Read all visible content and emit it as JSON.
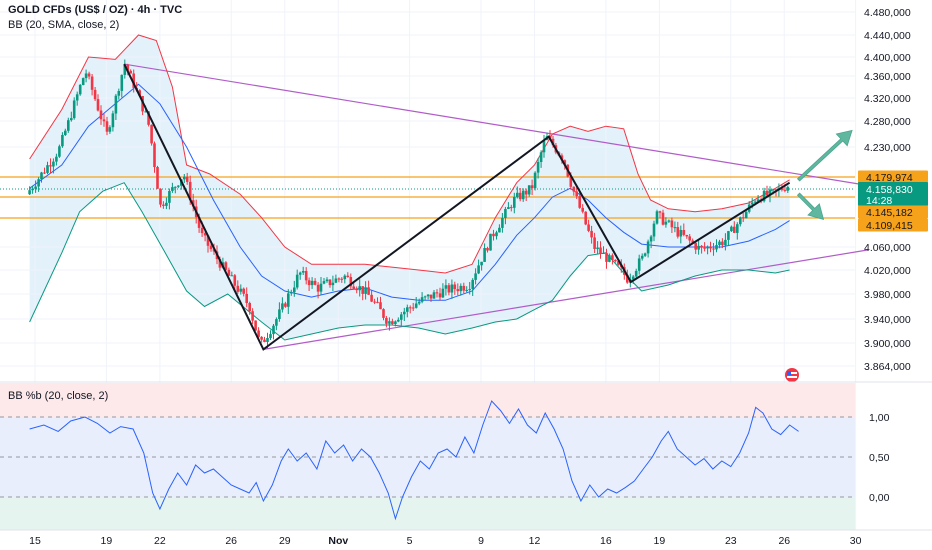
{
  "header": {
    "symbol_line": "GOLD CFDs (US$ / OZ) · 4h · TVC",
    "indicator_line": "BB (20, SMA, close, 2)",
    "oscillator_line": "BB %b (20, close, 2)"
  },
  "colors": {
    "up": "#089981",
    "down": "#f23645",
    "bb_upper": "#f23645",
    "bb_lower": "#089981",
    "bb_basis": "#2962ff",
    "bb_fill": "#d8ecf8",
    "trend": "#b15cc9",
    "level": "#f7a21b",
    "arrow": "#5fb7a0",
    "pb_line": "#2962ff",
    "last_price_bg": "#089981"
  },
  "price_tags": {
    "resistance": "4.179,974",
    "last": "4.158,830",
    "countdown": "14:28",
    "level_mid": "4.145,182",
    "level_low": "4.109,415"
  },
  "chart_data": [
    {
      "type": "candlestick",
      "title": "GOLD CFDs (US$ / OZ) · 4h · TVC",
      "overlay": "BB (20, SMA, close, 2)",
      "y_ticks": [
        "4.480,000",
        "4.440,000",
        "4.400,000",
        "4.360,000",
        "4.320,000",
        "4.280,000",
        "4.230,000",
        "4.060,000",
        "4.020,000",
        "3.980,000",
        "3.940,000",
        "3.900,000",
        "3.864,000"
      ],
      "y_tick_values": [
        4480,
        4440,
        4400,
        4360,
        4320,
        4280,
        4230,
        4060,
        4020,
        3980,
        3940,
        3900,
        3864
      ],
      "ylim": [
        3850,
        4495
      ],
      "x_ticks": [
        "15",
        "19",
        "22",
        "26",
        "29",
        "Nov",
        "5",
        "9",
        "12",
        "16",
        "19",
        "23",
        "26",
        "30"
      ],
      "x_tick_day": [
        15,
        19,
        22,
        26,
        29,
        32,
        36,
        40,
        43,
        47,
        50,
        54,
        57,
        61
      ],
      "xlim": [
        14.6,
        62.5
      ],
      "price_path": [
        [
          14.7,
          4150
        ],
        [
          16.5,
          4225
        ],
        [
          18.0,
          4370
        ],
        [
          19.2,
          4255
        ],
        [
          20.2,
          4385
        ],
        [
          21.5,
          4280
        ],
        [
          22.2,
          4130
        ],
        [
          23.5,
          4185
        ],
        [
          24.5,
          4080
        ],
        [
          25.8,
          4020
        ],
        [
          27.2,
          3960
        ],
        [
          27.8,
          3895
        ],
        [
          29.0,
          3955
        ],
        [
          30.0,
          4015
        ],
        [
          31.0,
          3990
        ],
        [
          32.5,
          4010
        ],
        [
          33.8,
          3980
        ],
        [
          35.0,
          3935
        ],
        [
          36.5,
          3965
        ],
        [
          38.0,
          3985
        ],
        [
          39.5,
          3995
        ],
        [
          40.8,
          4080
        ],
        [
          42.0,
          4140
        ],
        [
          43.0,
          4160
        ],
        [
          43.8,
          4250
        ],
        [
          44.8,
          4210
        ],
        [
          45.3,
          4160
        ],
        [
          46.5,
          4060
        ],
        [
          48.0,
          4020
        ],
        [
          48.4,
          4005
        ],
        [
          49.2,
          4040
        ],
        [
          50.0,
          4115
        ],
        [
          51.2,
          4085
        ],
        [
          52.5,
          4055
        ],
        [
          53.8,
          4070
        ],
        [
          54.8,
          4110
        ],
        [
          55.6,
          4145
        ],
        [
          56.5,
          4150
        ],
        [
          57.3,
          4165
        ]
      ],
      "bb_upper": [
        [
          14.7,
          4210
        ],
        [
          16.5,
          4300
        ],
        [
          18.0,
          4400
        ],
        [
          19.5,
          4395
        ],
        [
          20.8,
          4440
        ],
        [
          21.8,
          4430
        ],
        [
          22.7,
          4340
        ],
        [
          23.5,
          4200
        ],
        [
          24.8,
          4185
        ],
        [
          26.5,
          4150
        ],
        [
          27.7,
          4110
        ],
        [
          29.0,
          4060
        ],
        [
          30.5,
          4030
        ],
        [
          32.0,
          4030
        ],
        [
          33.5,
          4030
        ],
        [
          35.0,
          4025
        ],
        [
          36.5,
          4020
        ],
        [
          38.0,
          4015
        ],
        [
          39.5,
          4030
        ],
        [
          40.8,
          4110
        ],
        [
          42.0,
          4170
        ],
        [
          43.0,
          4200
        ],
        [
          44.0,
          4255
        ],
        [
          45.0,
          4270
        ],
        [
          46.0,
          4260
        ],
        [
          47.0,
          4270
        ],
        [
          48.0,
          4265
        ],
        [
          48.8,
          4185
        ],
        [
          49.5,
          4140
        ],
        [
          50.5,
          4125
        ],
        [
          52.0,
          4120
        ],
        [
          53.5,
          4125
        ],
        [
          55.0,
          4135
        ],
        [
          56.5,
          4160
        ],
        [
          57.3,
          4175
        ]
      ],
      "bb_basis": [
        [
          14.7,
          4160
        ],
        [
          16.5,
          4200
        ],
        [
          18.0,
          4270
        ],
        [
          19.5,
          4310
        ],
        [
          20.8,
          4345
        ],
        [
          22.0,
          4310
        ],
        [
          23.5,
          4230
        ],
        [
          25.0,
          4140
        ],
        [
          26.5,
          4060
        ],
        [
          27.7,
          4010
        ],
        [
          29.0,
          3985
        ],
        [
          30.5,
          3975
        ],
        [
          32.0,
          3985
        ],
        [
          33.5,
          3990
        ],
        [
          35.0,
          3975
        ],
        [
          36.5,
          3970
        ],
        [
          38.0,
          3970
        ],
        [
          39.5,
          3985
        ],
        [
          40.8,
          4030
        ],
        [
          42.0,
          4080
        ],
        [
          43.0,
          4110
        ],
        [
          44.0,
          4145
        ],
        [
          45.0,
          4160
        ],
        [
          46.0,
          4140
        ],
        [
          47.0,
          4110
        ],
        [
          48.0,
          4085
        ],
        [
          49.0,
          4065
        ],
        [
          50.5,
          4060
        ],
        [
          52.0,
          4060
        ],
        [
          53.5,
          4060
        ],
        [
          55.0,
          4070
        ],
        [
          56.5,
          4090
        ],
        [
          57.3,
          4105
        ]
      ],
      "bb_lower": [
        [
          14.7,
          3935
        ],
        [
          16.5,
          4050
        ],
        [
          17.5,
          4120
        ],
        [
          18.8,
          4155
        ],
        [
          20.0,
          4170
        ],
        [
          21.0,
          4120
        ],
        [
          22.3,
          4050
        ],
        [
          23.5,
          3985
        ],
        [
          24.5,
          3960
        ],
        [
          25.8,
          3980
        ],
        [
          27.7,
          3935
        ],
        [
          29.0,
          3905
        ],
        [
          30.5,
          3915
        ],
        [
          32.0,
          3925
        ],
        [
          33.5,
          3930
        ],
        [
          35.0,
          3930
        ],
        [
          36.5,
          3925
        ],
        [
          38.0,
          3915
        ],
        [
          39.5,
          3925
        ],
        [
          40.8,
          3935
        ],
        [
          42.0,
          3940
        ],
        [
          43.0,
          3955
        ],
        [
          44.0,
          3970
        ],
        [
          45.0,
          4010
        ],
        [
          46.0,
          4045
        ],
        [
          47.0,
          4050
        ],
        [
          48.0,
          4015
        ],
        [
          49.0,
          3985
        ],
        [
          50.5,
          3995
        ],
        [
          52.0,
          4010
        ],
        [
          53.5,
          4020
        ],
        [
          55.0,
          4020
        ],
        [
          56.5,
          4015
        ],
        [
          57.3,
          4020
        ]
      ],
      "zigzag": [
        [
          20.0,
          4385
        ],
        [
          27.8,
          3890
        ],
        [
          43.8,
          4250
        ],
        [
          48.4,
          4000
        ],
        [
          57.3,
          4170
        ]
      ],
      "trend_upper": [
        [
          20.0,
          4385
        ],
        [
          61.7,
          4165
        ]
      ],
      "trend_lower": [
        [
          27.8,
          3890
        ],
        [
          61.7,
          4055
        ]
      ],
      "levels": [
        4179.974,
        4145.182,
        4109.415
      ],
      "last_price": 4158.83,
      "arrows": [
        {
          "from": [
            57.8,
            4175
          ],
          "to": [
            60.8,
            4262
          ]
        },
        {
          "from": [
            57.8,
            4150
          ],
          "to": [
            59.2,
            4107
          ]
        }
      ]
    },
    {
      "type": "line",
      "title": "BB %b (20, close, 2)",
      "y_ticks": [
        "1,00",
        "0,50",
        "0,00"
      ],
      "y_tick_values": [
        1.0,
        0.5,
        0.0
      ],
      "ylim": [
        -0.32,
        1.35
      ],
      "series": [
        {
          "name": "BB %b",
          "points": [
            [
              14.7,
              0.85
            ],
            [
              15.5,
              0.9
            ],
            [
              16.3,
              0.82
            ],
            [
              17.0,
              0.95
            ],
            [
              17.8,
              1.0
            ],
            [
              18.5,
              0.92
            ],
            [
              19.2,
              0.8
            ],
            [
              19.8,
              0.88
            ],
            [
              20.5,
              0.85
            ],
            [
              21.1,
              0.55
            ],
            [
              21.6,
              0.05
            ],
            [
              22.0,
              -0.15
            ],
            [
              22.5,
              0.1
            ],
            [
              23.0,
              0.3
            ],
            [
              23.5,
              0.15
            ],
            [
              24.0,
              0.4
            ],
            [
              24.5,
              0.3
            ],
            [
              25.0,
              0.35
            ],
            [
              25.5,
              0.25
            ],
            [
              26.0,
              0.15
            ],
            [
              26.5,
              0.1
            ],
            [
              27.0,
              0.05
            ],
            [
              27.4,
              0.18
            ],
            [
              27.8,
              -0.05
            ],
            [
              28.3,
              0.15
            ],
            [
              28.8,
              0.45
            ],
            [
              29.2,
              0.6
            ],
            [
              29.7,
              0.45
            ],
            [
              30.2,
              0.55
            ],
            [
              30.8,
              0.35
            ],
            [
              31.3,
              0.7
            ],
            [
              31.8,
              0.55
            ],
            [
              32.3,
              0.65
            ],
            [
              32.8,
              0.45
            ],
            [
              33.3,
              0.6
            ],
            [
              33.8,
              0.5
            ],
            [
              34.3,
              0.3
            ],
            [
              34.8,
              0.05
            ],
            [
              35.2,
              -0.27
            ],
            [
              35.6,
              0.0
            ],
            [
              36.1,
              0.25
            ],
            [
              36.6,
              0.45
            ],
            [
              37.1,
              0.35
            ],
            [
              37.6,
              0.55
            ],
            [
              38.1,
              0.6
            ],
            [
              38.6,
              0.5
            ],
            [
              39.1,
              0.75
            ],
            [
              39.6,
              0.55
            ],
            [
              40.1,
              0.9
            ],
            [
              40.6,
              1.2
            ],
            [
              41.1,
              1.08
            ],
            [
              41.6,
              0.92
            ],
            [
              42.1,
              1.1
            ],
            [
              42.6,
              0.9
            ],
            [
              43.1,
              0.8
            ],
            [
              43.6,
              1.05
            ],
            [
              44.1,
              0.85
            ],
            [
              44.6,
              0.6
            ],
            [
              45.1,
              0.2
            ],
            [
              45.6,
              -0.05
            ],
            [
              46.1,
              0.15
            ],
            [
              46.6,
              0.0
            ],
            [
              47.1,
              0.1
            ],
            [
              47.6,
              0.05
            ],
            [
              48.1,
              0.12
            ],
            [
              48.6,
              0.2
            ],
            [
              49.1,
              0.35
            ],
            [
              49.6,
              0.5
            ],
            [
              50.1,
              0.7
            ],
            [
              50.5,
              0.82
            ],
            [
              51.0,
              0.6
            ],
            [
              51.5,
              0.5
            ],
            [
              52.0,
              0.4
            ],
            [
              52.5,
              0.48
            ],
            [
              53.0,
              0.35
            ],
            [
              53.5,
              0.45
            ],
            [
              54.0,
              0.38
            ],
            [
              54.5,
              0.55
            ],
            [
              55.0,
              0.8
            ],
            [
              55.4,
              1.12
            ],
            [
              55.8,
              1.05
            ],
            [
              56.3,
              0.85
            ],
            [
              56.8,
              0.78
            ],
            [
              57.3,
              0.9
            ],
            [
              57.8,
              0.82
            ]
          ]
        }
      ]
    }
  ]
}
